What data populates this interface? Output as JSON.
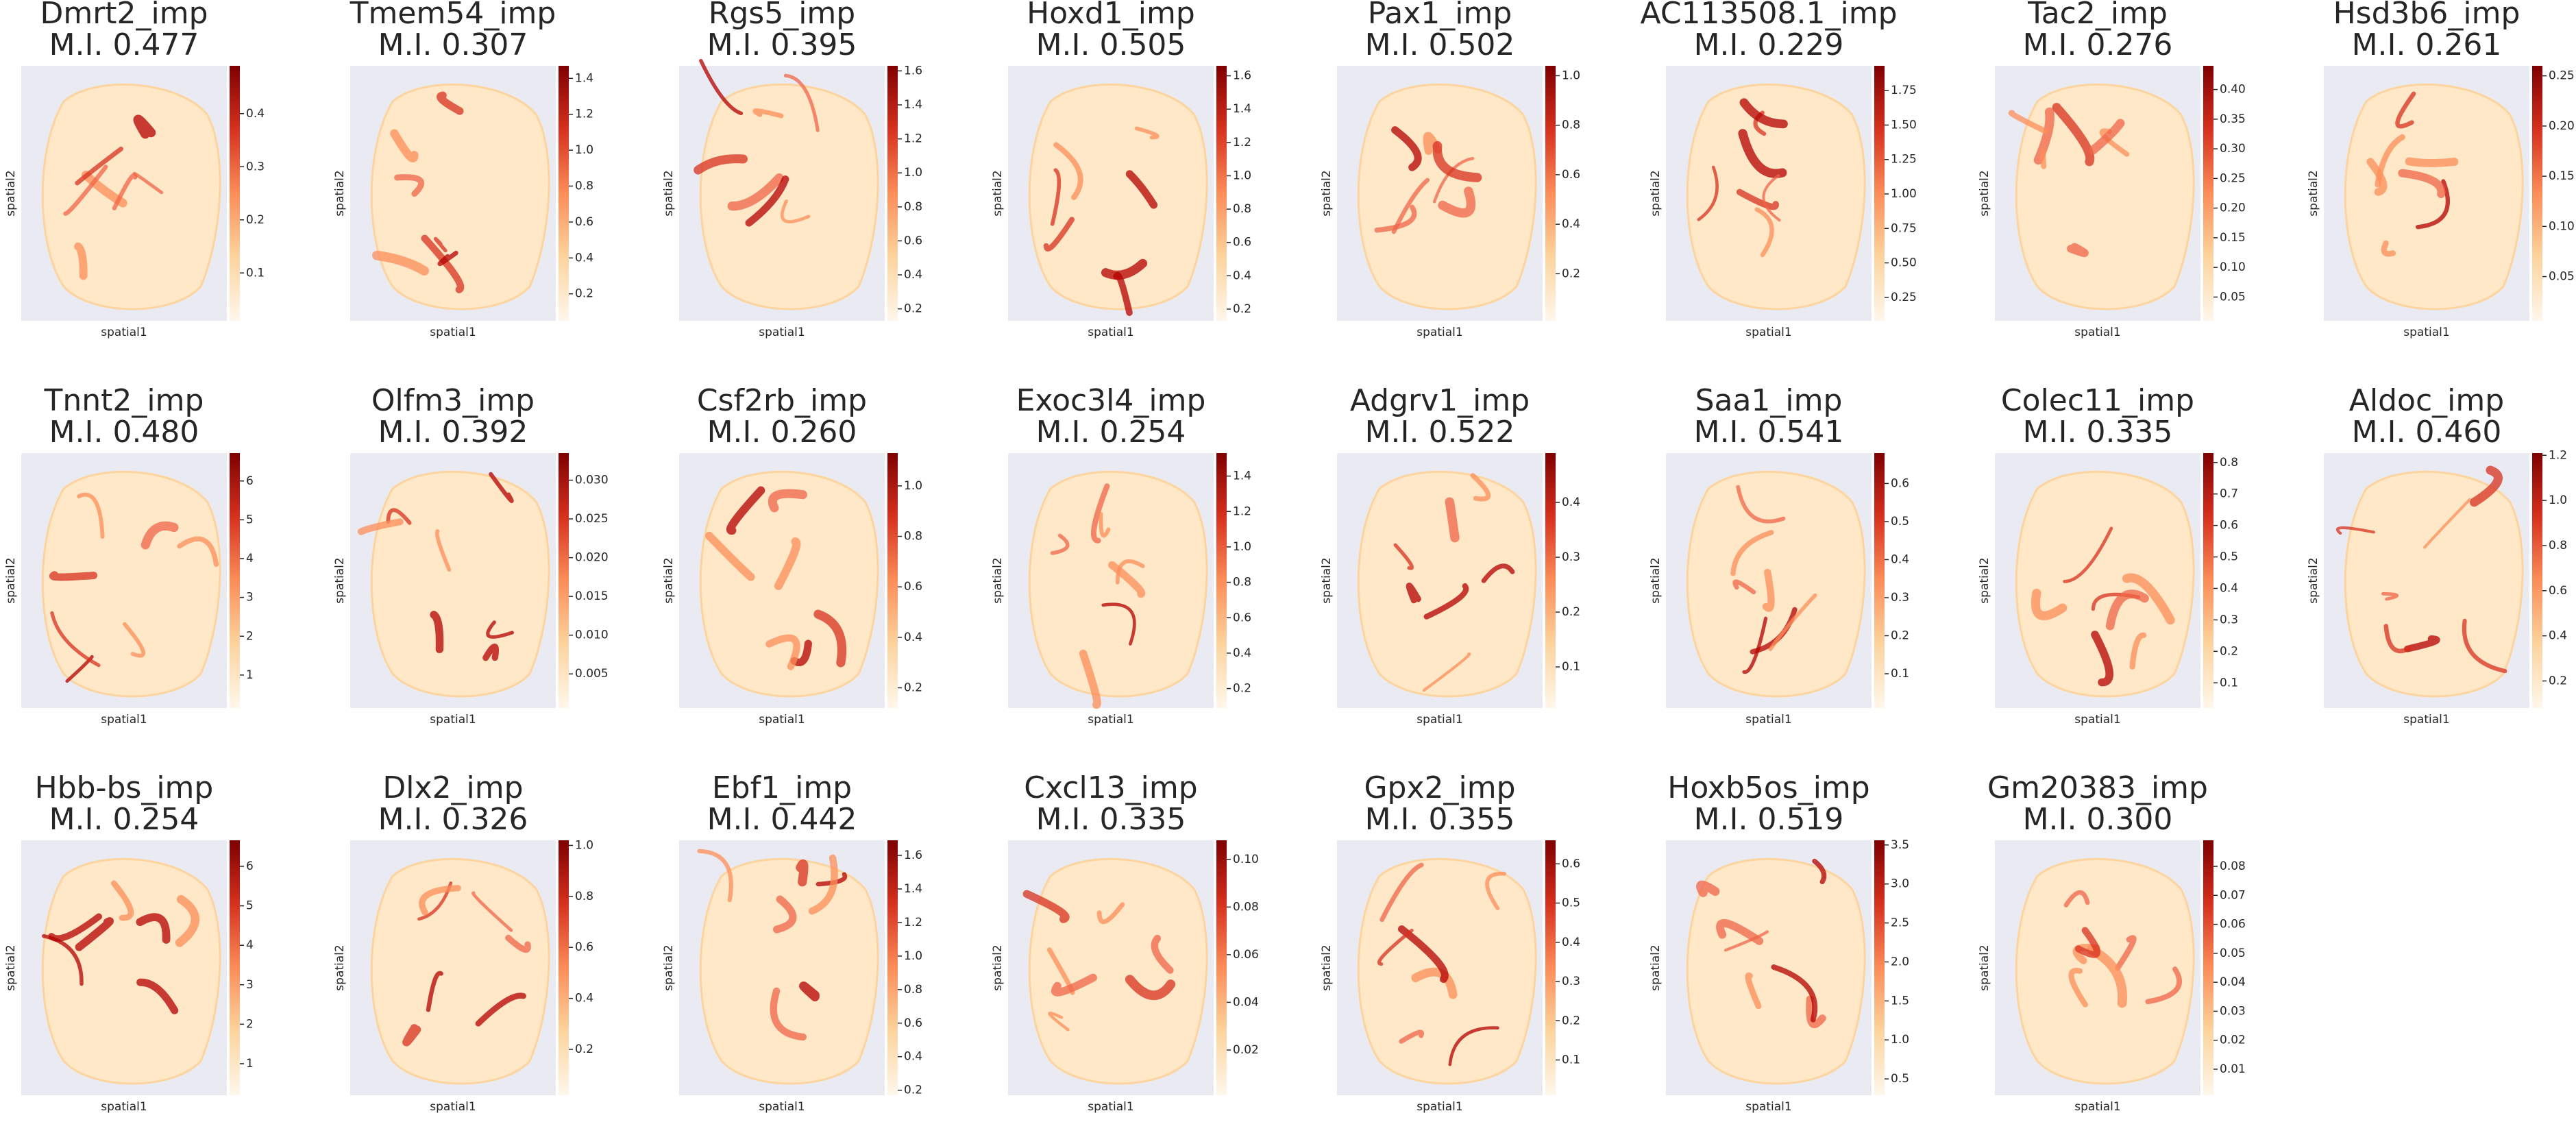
{
  "chart_data": [
    {
      "type": "spatial",
      "title": "Dmrt2_imp",
      "subtitle": "M.I. 0.477",
      "xlabel": "spatial1",
      "ylabel": "spatial2",
      "clim": [
        0.01,
        0.49
      ],
      "cticks": [
        0.1,
        0.2,
        0.3,
        0.4
      ]
    },
    {
      "type": "spatial",
      "title": "Tmem54_imp",
      "subtitle": "M.I. 0.307",
      "xlabel": "spatial1",
      "ylabel": "spatial2",
      "clim": [
        0.05,
        1.47
      ],
      "cticks": [
        0.2,
        0.4,
        0.6,
        0.8,
        {
          "value": 1,
          "label": "1.0"
        },
        1.2,
        1.4
      ]
    },
    {
      "type": "spatial",
      "title": "Rgs5_imp",
      "subtitle": "M.I. 0.395",
      "xlabel": "spatial1",
      "ylabel": "spatial2",
      "clim": [
        0.13,
        1.63
      ],
      "cticks": [
        0.2,
        0.4,
        0.6,
        0.8,
        {
          "value": 1,
          "label": "1.0"
        },
        1.2,
        1.4,
        1.6
      ]
    },
    {
      "type": "spatial",
      "title": "Hoxd1_imp",
      "subtitle": "M.I. 0.505",
      "xlabel": "spatial1",
      "ylabel": "spatial2",
      "clim": [
        0.13,
        1.66
      ],
      "cticks": [
        0.2,
        0.4,
        0.6,
        0.8,
        {
          "value": 1,
          "label": "1.0"
        },
        1.2,
        1.4,
        1.6
      ]
    },
    {
      "type": "spatial",
      "title": "Pax1_imp",
      "subtitle": "M.I. 0.502",
      "xlabel": "spatial1",
      "ylabel": "spatial2",
      "clim": [
        0.01,
        1.04
      ],
      "cticks": [
        0.2,
        0.4,
        0.6,
        0.8,
        {
          "value": 1,
          "label": "1.0"
        }
      ]
    },
    {
      "type": "spatial",
      "title": "AC113508.1_imp",
      "subtitle": "M.I. 0.229",
      "xlabel": "spatial1",
      "ylabel": "spatial2",
      "clim": [
        0.08,
        1.93
      ],
      "cticks": [
        0.25,
        {
          "value": 0.5,
          "label": "0.50"
        },
        0.75,
        {
          "value": 1,
          "label": "1.00"
        },
        1.25,
        {
          "value": 1.5,
          "label": "1.50"
        },
        1.75
      ]
    },
    {
      "type": "spatial",
      "title": "Tac2_imp",
      "subtitle": "M.I. 0.276",
      "xlabel": "spatial1",
      "ylabel": "spatial2",
      "clim": [
        0.01,
        0.44
      ],
      "cticks": [
        0.05,
        {
          "value": 0.1,
          "label": "0.10"
        },
        0.15,
        {
          "value": 0.2,
          "label": "0.20"
        },
        0.25,
        {
          "value": 0.3,
          "label": "0.30"
        },
        0.35,
        {
          "value": 0.4,
          "label": "0.40"
        }
      ]
    },
    {
      "type": "spatial",
      "title": "Hsd3b6_imp",
      "subtitle": "M.I. 0.261",
      "xlabel": "spatial1",
      "ylabel": "spatial2",
      "clim": [
        0.006,
        0.26
      ],
      "cticks": [
        0.05,
        {
          "value": 0.1,
          "label": "0.10"
        },
        0.15,
        {
          "value": 0.2,
          "label": "0.20"
        },
        0.25
      ]
    },
    {
      "type": "spatial",
      "title": "Tnnt2_imp",
      "subtitle": "M.I. 0.480",
      "xlabel": "spatial1",
      "ylabel": "spatial2",
      "clim": [
        0.15,
        6.72
      ],
      "cticks": [
        1,
        2,
        3,
        4,
        5,
        6
      ]
    },
    {
      "type": "spatial",
      "title": "Olfm3_imp",
      "subtitle": "M.I. 0.392",
      "xlabel": "spatial1",
      "ylabel": "spatial2",
      "clim": [
        0.0006,
        0.0335
      ],
      "cticks": [
        0.005,
        {
          "value": 0.01,
          "label": "0.010"
        },
        0.015,
        {
          "value": 0.02,
          "label": "0.020"
        },
        0.025,
        {
          "value": 0.03,
          "label": "0.030"
        }
      ]
    },
    {
      "type": "spatial",
      "title": "Csf2rb_imp",
      "subtitle": "M.I. 0.260",
      "xlabel": "spatial1",
      "ylabel": "spatial2",
      "clim": [
        0.12,
        1.13
      ],
      "cticks": [
        0.2,
        0.4,
        0.6,
        0.8,
        {
          "value": 1,
          "label": "1.0"
        }
      ]
    },
    {
      "type": "spatial",
      "title": "Exoc3l4_imp",
      "subtitle": "M.I. 0.254",
      "xlabel": "spatial1",
      "ylabel": "spatial2",
      "clim": [
        0.09,
        1.53
      ],
      "cticks": [
        0.2,
        0.4,
        0.6,
        0.8,
        {
          "value": 1,
          "label": "1.0"
        },
        1.2,
        1.4
      ]
    },
    {
      "type": "spatial",
      "title": "Adgrv1_imp",
      "subtitle": "M.I. 0.522",
      "xlabel": "spatial1",
      "ylabel": "spatial2",
      "clim": [
        0.025,
        0.49
      ],
      "cticks": [
        0.1,
        0.2,
        0.3,
        0.4
      ]
    },
    {
      "type": "spatial",
      "title": "Saa1_imp",
      "subtitle": "M.I. 0.541",
      "xlabel": "spatial1",
      "ylabel": "spatial2",
      "clim": [
        0.01,
        0.68
      ],
      "cticks": [
        0.1,
        0.2,
        0.3,
        0.4,
        0.5,
        0.6
      ]
    },
    {
      "type": "spatial",
      "title": "Colec11_imp",
      "subtitle": "M.I. 0.335",
      "xlabel": "spatial1",
      "ylabel": "spatial2",
      "clim": [
        0.02,
        0.83
      ],
      "cticks": [
        0.1,
        0.2,
        0.3,
        0.4,
        0.5,
        0.6,
        0.7,
        0.8
      ]
    },
    {
      "type": "spatial",
      "title": "Aldoc_imp",
      "subtitle": "M.I. 0.460",
      "xlabel": "spatial1",
      "ylabel": "spatial2",
      "clim": [
        0.08,
        1.21
      ],
      "cticks": [
        0.2,
        0.4,
        0.6,
        0.8,
        {
          "value": 1,
          "label": "1.0"
        },
        1.2
      ]
    },
    {
      "type": "spatial",
      "title": "Hbb-bs_imp",
      "subtitle": "M.I. 0.254",
      "xlabel": "spatial1",
      "ylabel": "spatial2",
      "clim": [
        0.2,
        6.66
      ],
      "cticks": [
        1,
        2,
        3,
        4,
        5,
        6
      ]
    },
    {
      "type": "spatial",
      "title": "Dlx2_imp",
      "subtitle": "M.I. 0.326",
      "xlabel": "spatial1",
      "ylabel": "spatial2",
      "clim": [
        0.02,
        1.02
      ],
      "cticks": [
        0.2,
        0.4,
        0.6,
        0.8,
        {
          "value": 1,
          "label": "1.0"
        }
      ]
    },
    {
      "type": "spatial",
      "title": "Ebf1_imp",
      "subtitle": "M.I. 0.442",
      "xlabel": "spatial1",
      "ylabel": "spatial2",
      "clim": [
        0.17,
        1.69
      ],
      "cticks": [
        0.2,
        0.4,
        0.6,
        0.8,
        {
          "value": 1,
          "label": "1.0"
        },
        1.2,
        1.4,
        1.6
      ]
    },
    {
      "type": "spatial",
      "title": "Cxcl13_imp",
      "subtitle": "M.I. 0.335",
      "xlabel": "spatial1",
      "ylabel": "spatial2",
      "clim": [
        0.001,
        0.108
      ],
      "cticks": [
        0.02,
        0.04,
        0.06,
        0.08,
        {
          "value": 0.1,
          "label": "0.10"
        }
      ]
    },
    {
      "type": "spatial",
      "title": "Gpx2_imp",
      "subtitle": "M.I. 0.355",
      "xlabel": "spatial1",
      "ylabel": "spatial2",
      "clim": [
        0.01,
        0.66
      ],
      "cticks": [
        0.1,
        0.2,
        0.3,
        0.4,
        0.5,
        0.6
      ]
    },
    {
      "type": "spatial",
      "title": "Hoxb5os_imp",
      "subtitle": "M.I. 0.519",
      "xlabel": "spatial1",
      "ylabel": "spatial2",
      "clim": [
        0.29,
        3.56
      ],
      "cticks": [
        0.5,
        {
          "value": 1,
          "label": "1.0"
        },
        1.5,
        {
          "value": 2,
          "label": "2.0"
        },
        2.5,
        {
          "value": 3,
          "label": "3.0"
        },
        3.5
      ]
    },
    {
      "type": "spatial",
      "title": "Gm20383_imp",
      "subtitle": "M.I. 0.300",
      "xlabel": "spatial1",
      "ylabel": "spatial2",
      "clim": [
        0.001,
        0.089
      ],
      "cticks": [
        0.01,
        0.02,
        0.03,
        0.04,
        0.05,
        0.06,
        0.07,
        0.08
      ]
    }
  ]
}
